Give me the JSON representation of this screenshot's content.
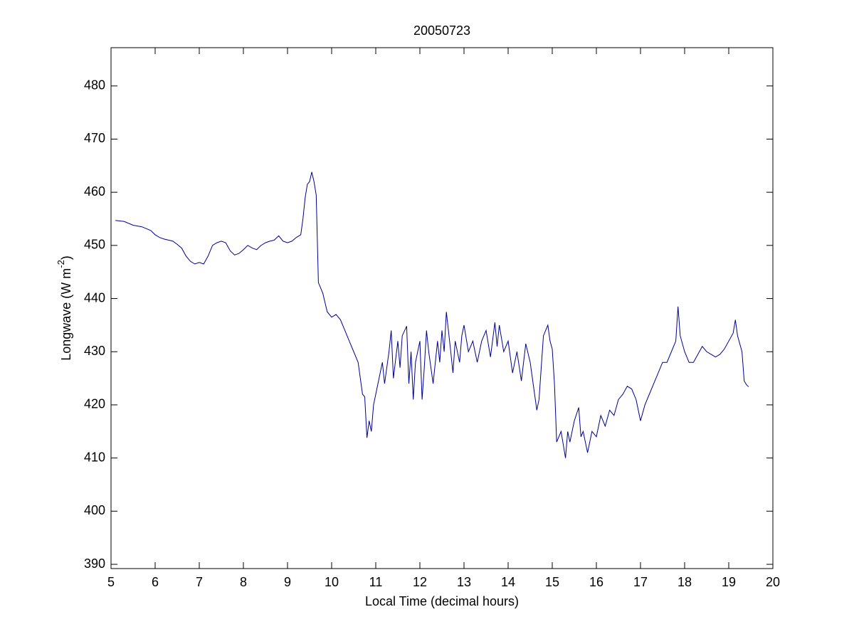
{
  "chart_data": {
    "type": "line",
    "title": "20050723",
    "xlabel": "Local Time (decimal hours)",
    "ylabel": [
      "Longwave (W m",
      "-2",
      ")"
    ],
    "xlim": [
      5,
      20
    ],
    "ylim": [
      389.2,
      487.2
    ],
    "xticks": [
      5,
      6,
      7,
      8,
      9,
      10,
      11,
      12,
      13,
      14,
      15,
      16,
      17,
      18,
      19,
      20
    ],
    "yticks": [
      390,
      400,
      410,
      420,
      430,
      440,
      450,
      460,
      470,
      480
    ],
    "grid": false,
    "series": [
      {
        "name": "Longwave",
        "color": "#00008f",
        "x": [
          5.1,
          5.3,
          5.5,
          5.7,
          5.9,
          6.0,
          6.1,
          6.2,
          6.3,
          6.4,
          6.5,
          6.6,
          6.7,
          6.8,
          6.9,
          7.0,
          7.1,
          7.2,
          7.3,
          7.4,
          7.5,
          7.6,
          7.7,
          7.8,
          7.9,
          8.0,
          8.1,
          8.2,
          8.3,
          8.4,
          8.5,
          8.6,
          8.7,
          8.8,
          8.9,
          9.0,
          9.1,
          9.2,
          9.3,
          9.35,
          9.4,
          9.45,
          9.5,
          9.55,
          9.6,
          9.65,
          9.7,
          9.8,
          9.9,
          10.0,
          10.1,
          10.2,
          10.3,
          10.4,
          10.5,
          10.6,
          10.7,
          10.75,
          10.8,
          10.85,
          10.9,
          10.95,
          11.0,
          11.1,
          11.15,
          11.2,
          11.3,
          11.35,
          11.4,
          11.5,
          11.55,
          11.6,
          11.7,
          11.75,
          11.8,
          11.85,
          11.9,
          12.0,
          12.05,
          12.1,
          12.15,
          12.2,
          12.3,
          12.4,
          12.45,
          12.5,
          12.55,
          12.6,
          12.7,
          12.75,
          12.8,
          12.9,
          12.95,
          13.0,
          13.1,
          13.2,
          13.3,
          13.4,
          13.5,
          13.6,
          13.7,
          13.75,
          13.8,
          13.9,
          14.0,
          14.1,
          14.2,
          14.3,
          14.4,
          14.5,
          14.6,
          14.65,
          14.7,
          14.8,
          14.9,
          14.95,
          15.0,
          15.05,
          15.1,
          15.2,
          15.3,
          15.35,
          15.4,
          15.5,
          15.6,
          15.65,
          15.7,
          15.8,
          15.9,
          16.0,
          16.1,
          16.2,
          16.3,
          16.4,
          16.5,
          16.6,
          16.7,
          16.8,
          16.9,
          17.0,
          17.1,
          17.2,
          17.3,
          17.4,
          17.5,
          17.6,
          17.7,
          17.8,
          17.85,
          17.9,
          18.0,
          18.1,
          18.2,
          18.3,
          18.4,
          18.5,
          18.6,
          18.7,
          18.8,
          18.9,
          19.0,
          19.1,
          19.15,
          19.2,
          19.3,
          19.35,
          19.4,
          19.45
        ],
        "values": [
          454.7,
          454.5,
          453.8,
          453.5,
          452.8,
          452,
          451.5,
          451.2,
          451,
          450.8,
          450.2,
          449.5,
          448,
          447,
          446.5,
          446.8,
          446.5,
          448,
          450,
          450.5,
          450.8,
          450.5,
          449,
          448.2,
          448.5,
          449.2,
          450,
          449.5,
          449.2,
          450,
          450.5,
          450.8,
          451,
          451.8,
          450.8,
          450.5,
          450.8,
          451.5,
          452,
          455,
          459,
          461.5,
          462,
          463.8,
          462,
          459.5,
          443,
          441,
          437.5,
          436.5,
          437,
          436,
          434,
          432,
          430,
          428,
          422,
          421.5,
          413.8,
          417,
          415,
          420,
          422,
          426,
          428,
          424,
          430,
          434,
          425,
          432,
          427,
          433,
          434.8,
          424,
          430,
          421,
          428,
          432,
          421,
          427,
          434,
          430,
          424,
          432,
          428,
          434,
          430,
          437.5,
          430,
          426,
          432,
          428,
          433,
          435,
          430,
          432,
          428,
          432,
          434,
          429,
          435.5,
          431,
          435,
          430,
          432,
          426,
          430,
          424.5,
          431.5,
          428,
          422,
          419,
          421,
          433,
          435,
          432,
          430.5,
          424,
          413,
          415,
          410,
          415,
          413,
          417,
          419.5,
          414,
          415,
          411,
          415,
          414,
          418,
          416,
          419,
          418,
          421,
          422,
          423.5,
          423,
          421,
          417,
          420,
          422,
          424,
          426,
          428,
          428,
          430,
          432,
          438.5,
          433,
          430,
          428,
          428,
          429.5,
          431,
          430,
          429.5,
          429,
          429.5,
          430.5,
          432,
          433.5,
          436,
          433,
          430,
          424.5,
          423.8,
          423.4
        ]
      }
    ]
  }
}
